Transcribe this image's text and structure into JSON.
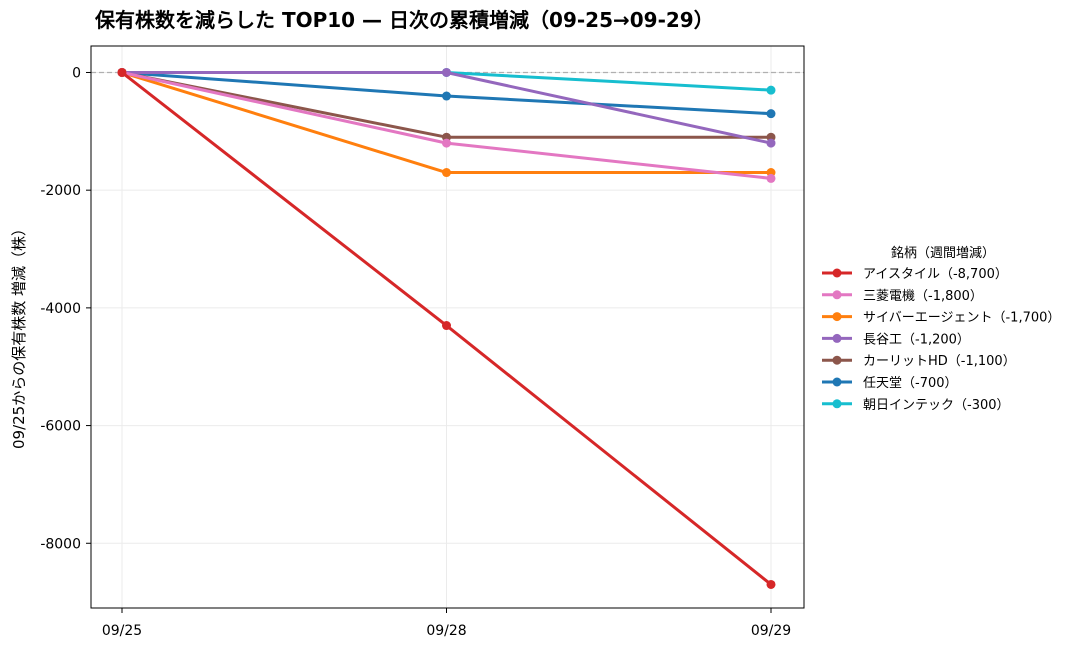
{
  "chart_data": {
    "type": "line",
    "title": "保有株数を減らした TOP10 — 日次の累積増減（09-25→09-29）",
    "xlabel": "",
    "ylabel": "09/25からの保有株数 増減（株）",
    "categories": [
      "09/25",
      "09/28",
      "09/29"
    ],
    "ylim": [
      -9100,
      450
    ],
    "yticks": [
      0,
      -2000,
      -4000,
      -6000,
      -8000
    ],
    "ytick_labels": [
      "0",
      "-2000",
      "-4000",
      "-6000",
      "-8000"
    ],
    "grid": true,
    "zero_reference_line": true,
    "legend": {
      "title": "銘柄（週間増減）",
      "placement": "right"
    },
    "series": [
      {
        "name": "アイスタイル（-8,700）",
        "color": "#d62728",
        "values": [
          0,
          -4300,
          -8700
        ]
      },
      {
        "name": "三菱電機（-1,800）",
        "color": "#e377c2",
        "values": [
          0,
          -1200,
          -1800
        ]
      },
      {
        "name": "サイバーエージェント（-1,700）",
        "color": "#ff7f0e",
        "values": [
          0,
          -1700,
          -1700
        ]
      },
      {
        "name": "長谷工（-1,200）",
        "color": "#9467bd",
        "values": [
          0,
          0,
          -1200
        ]
      },
      {
        "name": "カーリットHD（-1,100）",
        "color": "#8c564b",
        "values": [
          0,
          -1100,
          -1100
        ]
      },
      {
        "name": "任天堂（-700）",
        "color": "#1f77b4",
        "values": [
          0,
          -400,
          -700
        ]
      },
      {
        "name": "朝日インテック（-300）",
        "color": "#17becf",
        "values": [
          0,
          0,
          -300
        ]
      }
    ]
  }
}
